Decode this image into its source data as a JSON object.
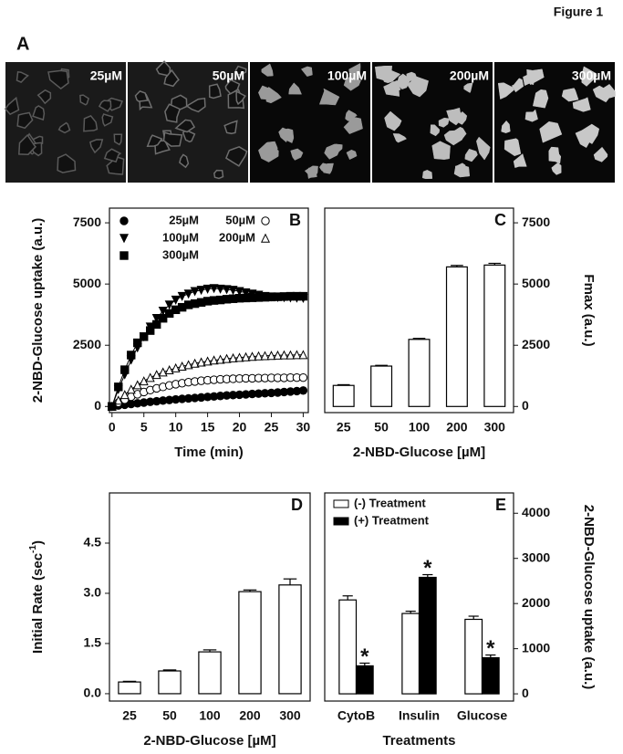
{
  "figure": {
    "title": "Figure 1"
  },
  "panel_a": {
    "panel": "A",
    "labels": [
      "25µM",
      "50µM",
      "100µM",
      "200µM",
      "300µM"
    ]
  },
  "chart_data": [
    {
      "type": "line",
      "panel": "B",
      "x_label": "Time (min)",
      "y_label": "2-NBD-Glucose uptake (a.u.)",
      "y_axis_side": "left",
      "x": [
        0,
        1,
        2,
        3,
        4,
        5,
        6,
        7,
        8,
        9,
        10,
        11,
        12,
        13,
        14,
        15,
        16,
        17,
        18,
        19,
        20,
        21,
        22,
        23,
        24,
        25,
        26,
        27,
        28,
        29,
        30
      ],
      "xlim": [
        -0.4,
        30.8
      ],
      "xticks": [
        0,
        5,
        10,
        15,
        20,
        25,
        30
      ],
      "ylim": [
        -250,
        8100
      ],
      "yticks": [
        0,
        2500,
        5000,
        7500
      ],
      "series": [
        {
          "name": "25µM",
          "marker": "circle-filled",
          "color": "#000000",
          "values": [
            0,
            40,
            70,
            100,
            130,
            160,
            190,
            215,
            240,
            265,
            290,
            310,
            330,
            350,
            370,
            390,
            410,
            430,
            450,
            465,
            480,
            495,
            510,
            525,
            540,
            555,
            570,
            590,
            610,
            630,
            650
          ]
        },
        {
          "name": "50µM",
          "marker": "circle-open",
          "color": "#000000",
          "values": [
            0,
            150,
            280,
            400,
            500,
            590,
            670,
            740,
            800,
            860,
            910,
            950,
            990,
            1020,
            1050,
            1070,
            1090,
            1110,
            1120,
            1130,
            1140,
            1150,
            1150,
            1160,
            1160,
            1170,
            1170,
            1170,
            1180,
            1180,
            1180
          ]
        },
        {
          "name": "100µM",
          "marker": "triangle-down-filled",
          "color": "#000000",
          "values": [
            0,
            700,
            1300,
            1900,
            2400,
            2850,
            3250,
            3600,
            3900,
            4150,
            4350,
            4500,
            4600,
            4700,
            4750,
            4800,
            4820,
            4800,
            4780,
            4750,
            4700,
            4650,
            4600,
            4550,
            4500,
            4480,
            4460,
            4450,
            4440,
            4430,
            4420
          ]
        },
        {
          "name": "200µM",
          "marker": "triangle-up-open",
          "color": "#000000",
          "values": [
            0,
            250,
            480,
            700,
            880,
            1040,
            1180,
            1300,
            1400,
            1490,
            1570,
            1640,
            1700,
            1760,
            1810,
            1850,
            1890,
            1920,
            1950,
            1980,
            2000,
            2020,
            2040,
            2060,
            2070,
            2080,
            2090,
            2100,
            2100,
            2110,
            2110
          ]
        },
        {
          "name": "300µM",
          "marker": "square-filled",
          "color": "#000000",
          "values": [
            0,
            800,
            1500,
            2100,
            2600,
            2850,
            3100,
            3350,
            3600,
            3800,
            3950,
            4050,
            4150,
            4200,
            4250,
            4300,
            4330,
            4350,
            4380,
            4400,
            4420,
            4430,
            4440,
            4450,
            4460,
            4470,
            4480,
            4490,
            4500,
            4500,
            4500
          ]
        }
      ]
    },
    {
      "type": "bar",
      "panel": "C",
      "x_label": "2-NBD-Glucose [µM]",
      "y_label": "Fmax (a.u.)",
      "y_axis_side": "right",
      "categories": [
        "25",
        "50",
        "100",
        "200",
        "300"
      ],
      "values": [
        860,
        1650,
        2740,
        5700,
        5775
      ],
      "errors": [
        30,
        30,
        40,
        60,
        70
      ],
      "color": "#ffffff",
      "ylim": [
        -250,
        8100
      ],
      "yticks": [
        0,
        2500,
        5000,
        7500
      ]
    },
    {
      "type": "bar",
      "panel": "D",
      "x_label": "2-NBD-Glucose [µM]",
      "y_label": "Initial Rate (sec",
      "y_label_sup": "-1",
      "y_label_end": ")",
      "y_axis_side": "left",
      "categories": [
        "25",
        "50",
        "100",
        "200",
        "300"
      ],
      "values": [
        0.35,
        0.68,
        1.25,
        3.05,
        3.25
      ],
      "errors": [
        0.02,
        0.03,
        0.06,
        0.05,
        0.18
      ],
      "color": "#ffffff",
      "ylim": [
        -0.22,
        6.0
      ],
      "yticks": [
        {
          "value": 0,
          "label": "0.0"
        },
        1.5,
        {
          "value": 3,
          "label": "3.0"
        },
        4.5
      ]
    },
    {
      "type": "grouped-bar",
      "panel": "E",
      "x_label": "Treatments",
      "y_label": "2-NBD-Glucose uptake (a.u.)",
      "y_axis_side": "right",
      "categories": [
        "CytoB",
        "Insulin",
        "Glucose"
      ],
      "ylim": [
        -160,
        4450
      ],
      "yticks": [
        0,
        1000,
        2000,
        3000,
        4000
      ],
      "series": [
        {
          "name": "(-) Treatment",
          "color": "#ffffff",
          "values": [
            2080,
            1780,
            1650
          ],
          "errors": [
            90,
            50,
            70
          ]
        },
        {
          "name": "(+) Treatment",
          "color": "#000000",
          "values": [
            620,
            2580,
            800
          ],
          "errors": [
            60,
            60,
            60
          ],
          "significance": [
            "*",
            "*",
            "*"
          ]
        }
      ]
    }
  ]
}
